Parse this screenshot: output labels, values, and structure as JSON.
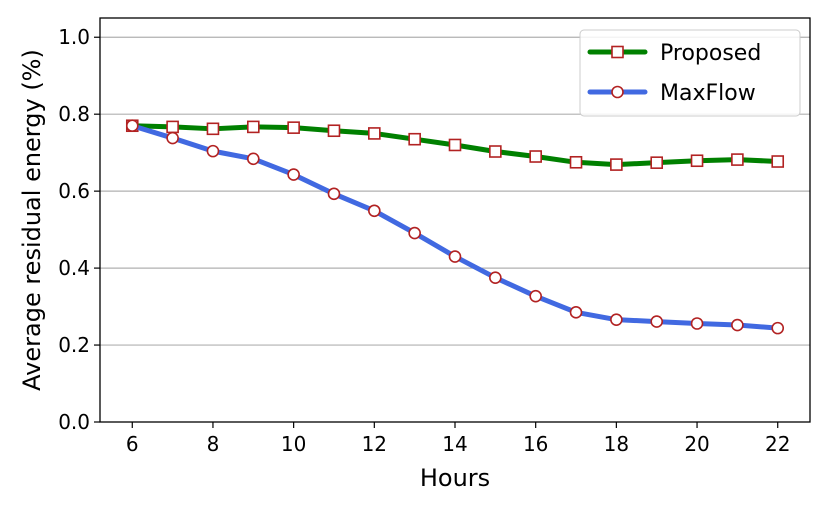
{
  "chart_data": {
    "type": "line",
    "title": "",
    "xlabel": "Hours",
    "ylabel": "Average residual energy (%)",
    "x": [
      6,
      7,
      8,
      9,
      10,
      11,
      12,
      13,
      14,
      15,
      16,
      17,
      18,
      19,
      20,
      21,
      22
    ],
    "xticks": [
      6,
      8,
      10,
      12,
      14,
      16,
      18,
      20,
      22
    ],
    "xtick_labels": [
      "6",
      "8",
      "10",
      "12",
      "14",
      "16",
      "18",
      "20",
      "22"
    ],
    "yticks": [
      0.0,
      0.2,
      0.4,
      0.6,
      0.8,
      1.0
    ],
    "ytick_labels": [
      "0.0",
      "0.2",
      "0.4",
      "0.6",
      "0.8",
      "1.0"
    ],
    "xlim": [
      5.2,
      22.8
    ],
    "ylim": [
      0.0,
      1.05
    ],
    "grid": "horizontal",
    "legend_position": "top-right",
    "series": [
      {
        "name": "Proposed",
        "color": "#008000",
        "marker": "square",
        "marker_edge_color": "#b22222",
        "values": [
          0.77,
          0.767,
          0.762,
          0.767,
          0.765,
          0.757,
          0.75,
          0.735,
          0.72,
          0.703,
          0.69,
          0.675,
          0.669,
          0.674,
          0.679,
          0.682,
          0.677
        ]
      },
      {
        "name": "MaxFlow",
        "color": "#4169e1",
        "marker": "circle",
        "marker_edge_color": "#b22222",
        "values": [
          0.77,
          0.738,
          0.704,
          0.684,
          0.643,
          0.593,
          0.549,
          0.491,
          0.43,
          0.375,
          0.327,
          0.285,
          0.266,
          0.261,
          0.256,
          0.252,
          0.244
        ]
      }
    ]
  }
}
